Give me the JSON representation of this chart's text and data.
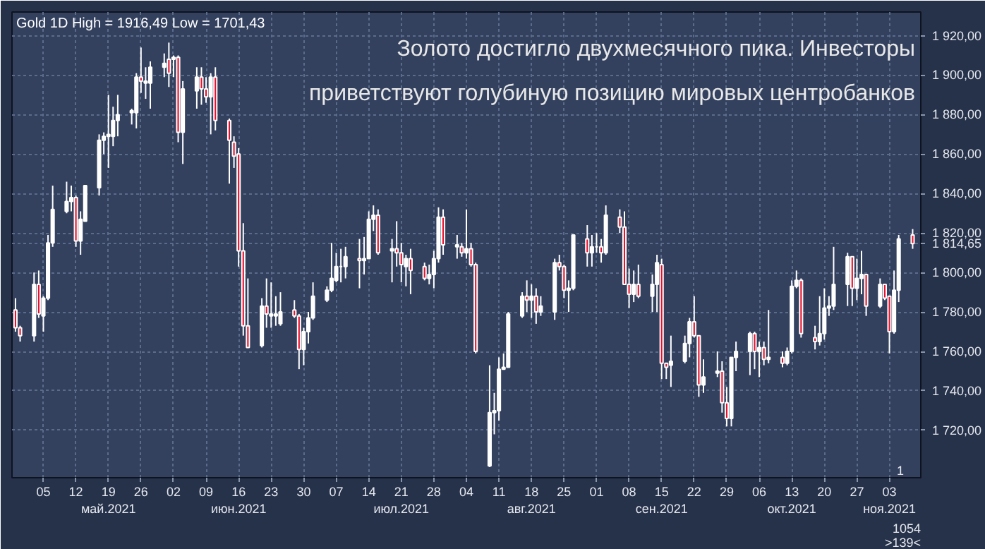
{
  "chart_data": {
    "type": "candlestick",
    "title": "Золото достигло двухмесячного пика. Инвесторы\nприветствуют голубиную позицию мировых центробанков",
    "subtitle": "Gold 1D High = 1916,49 Low = 1701,43",
    "x": [
      "2021-04-29",
      "2021-04-30",
      "2021-05-03",
      "2021-05-04",
      "2021-05-05",
      "2021-05-06",
      "2021-05-07",
      "2021-05-10",
      "2021-05-11",
      "2021-05-12",
      "2021-05-13",
      "2021-05-14",
      "2021-05-17",
      "2021-05-18",
      "2021-05-19",
      "2021-05-20",
      "2021-05-21",
      "2021-05-24",
      "2021-05-25",
      "2021-05-26",
      "2021-05-27",
      "2021-05-28",
      "2021-05-31",
      "2021-06-01",
      "2021-06-02",
      "2021-06-03",
      "2021-06-04",
      "2021-06-07",
      "2021-06-08",
      "2021-06-09",
      "2021-06-10",
      "2021-06-11",
      "2021-06-14",
      "2021-06-15",
      "2021-06-16",
      "2021-06-17",
      "2021-06-18",
      "2021-06-21",
      "2021-06-22",
      "2021-06-23",
      "2021-06-24",
      "2021-06-25",
      "2021-06-28",
      "2021-06-29",
      "2021-06-30",
      "2021-07-01",
      "2021-07-02",
      "2021-07-05",
      "2021-07-06",
      "2021-07-07",
      "2021-07-08",
      "2021-07-09",
      "2021-07-12",
      "2021-07-13",
      "2021-07-14",
      "2021-07-15",
      "2021-07-16",
      "2021-07-19",
      "2021-07-20",
      "2021-07-21",
      "2021-07-22",
      "2021-07-23",
      "2021-07-26",
      "2021-07-27",
      "2021-07-28",
      "2021-07-29",
      "2021-07-30",
      "2021-08-02",
      "2021-08-03",
      "2021-08-04",
      "2021-08-05",
      "2021-08-06",
      "2021-08-09",
      "2021-08-10",
      "2021-08-11",
      "2021-08-12",
      "2021-08-13",
      "2021-08-16",
      "2021-08-17",
      "2021-08-18",
      "2021-08-19",
      "2021-08-20",
      "2021-08-23",
      "2021-08-24",
      "2021-08-25",
      "2021-08-26",
      "2021-08-27",
      "2021-08-30",
      "2021-08-31",
      "2021-09-01",
      "2021-09-02",
      "2021-09-03",
      "2021-09-06",
      "2021-09-07",
      "2021-09-08",
      "2021-09-09",
      "2021-09-10",
      "2021-09-13",
      "2021-09-14",
      "2021-09-15",
      "2021-09-16",
      "2021-09-17",
      "2021-09-20",
      "2021-09-21",
      "2021-09-22",
      "2021-09-23",
      "2021-09-24",
      "2021-09-27",
      "2021-09-28",
      "2021-09-29",
      "2021-09-30",
      "2021-10-01",
      "2021-10-04",
      "2021-10-05",
      "2021-10-06",
      "2021-10-07",
      "2021-10-08",
      "2021-10-11",
      "2021-10-12",
      "2021-10-13",
      "2021-10-14",
      "2021-10-15",
      "2021-10-18",
      "2021-10-19",
      "2021-10-20",
      "2021-10-21",
      "2021-10-22",
      "2021-10-25",
      "2021-10-26",
      "2021-10-27",
      "2021-10-28",
      "2021-10-29",
      "2021-11-01",
      "2021-11-02",
      "2021-11-03",
      "2021-11-04",
      "2021-11-05",
      "2021-11-08"
    ],
    "ohlc": [
      [
        1781,
        1787,
        1770,
        1772
      ],
      [
        1772,
        1773,
        1765,
        1768
      ],
      [
        1768,
        1800,
        1765,
        1794
      ],
      [
        1794,
        1801,
        1777,
        1779
      ],
      [
        1778,
        1788,
        1770,
        1787
      ],
      [
        1787,
        1819,
        1786,
        1815
      ],
      [
        1815,
        1844,
        1813,
        1832
      ],
      [
        1831,
        1846,
        1830,
        1836
      ],
      [
        1836,
        1844,
        1831,
        1838
      ],
      [
        1838,
        1839,
        1813,
        1816
      ],
      [
        1816,
        1831,
        1809,
        1827
      ],
      [
        1826,
        1844,
        1826,
        1844
      ],
      [
        1843,
        1870,
        1839,
        1867
      ],
      [
        1867,
        1871,
        1860,
        1869
      ],
      [
        1869,
        1890,
        1853,
        1870
      ],
      [
        1869,
        1884,
        1864,
        1877
      ],
      [
        1877,
        1890,
        1869,
        1880
      ],
      [
        1881,
        1883,
        1875,
        1882
      ],
      [
        1881,
        1901,
        1873,
        1899
      ],
      [
        1899,
        1914,
        1891,
        1897
      ],
      [
        1896,
        1904,
        1888,
        1897
      ],
      [
        1896,
        1907,
        1883,
        1904
      ],
      [
        1904,
        1911,
        1899,
        1906
      ],
      [
        1908,
        1916.49,
        1894,
        1901
      ],
      [
        1908,
        1910,
        1899,
        1909
      ],
      [
        1909,
        1910,
        1866,
        1871
      ],
      [
        1871,
        1897,
        1855,
        1893
      ],
      [
        1892,
        1904,
        1883,
        1899
      ],
      [
        1899,
        1904,
        1885,
        1893
      ],
      [
        1893,
        1899,
        1886,
        1889
      ],
      [
        1889,
        1901,
        1870,
        1899
      ],
      [
        1899,
        1904,
        1872,
        1877
      ],
      [
        1877,
        1878,
        1845,
        1867
      ],
      [
        1866,
        1869,
        1853,
        1859
      ],
      [
        1860,
        1863,
        1803,
        1811
      ],
      [
        1811,
        1825,
        1768,
        1773
      ],
      [
        1773,
        1797,
        1762,
        1762
      ],
      [
        1763,
        1787,
        1762,
        1783
      ],
      [
        1783,
        1797,
        1772,
        1779
      ],
      [
        1778,
        1795,
        1772,
        1779
      ],
      [
        1778,
        1788,
        1773,
        1779
      ],
      [
        1774,
        1790,
        1773,
        1780
      ],
      [
        1781,
        1786,
        1777,
        1778
      ],
      [
        1778,
        1779,
        1751,
        1761
      ],
      [
        1761,
        1772,
        1753,
        1770
      ],
      [
        1770,
        1780,
        1764,
        1777
      ],
      [
        1777,
        1795,
        1776,
        1788
      ],
      [
        1786,
        1793,
        1785,
        1791
      ],
      [
        1791,
        1815,
        1790,
        1797
      ],
      [
        1796,
        1810,
        1795,
        1803
      ],
      [
        1803,
        1812,
        1795,
        1803
      ],
      [
        1803,
        1813,
        1797,
        1808
      ],
      [
        1807,
        1817,
        1792,
        1806
      ],
      [
        1806,
        1818,
        1799,
        1807
      ],
      [
        1807,
        1831,
        1807,
        1827
      ],
      [
        1827,
        1834,
        1821,
        1829
      ],
      [
        1829,
        1832,
        1809,
        1810
      ],
      [
        1811,
        1817,
        1795,
        1812
      ],
      [
        1812,
        1826,
        1803,
        1810
      ],
      [
        1810,
        1815,
        1795,
        1804
      ],
      [
        1803,
        1809,
        1793,
        1807
      ],
      [
        1807,
        1812,
        1789,
        1801
      ],
      [
        1803,
        1805,
        1796,
        1797
      ],
      [
        1797,
        1804,
        1794,
        1799
      ],
      [
        1799,
        1811,
        1792,
        1807
      ],
      [
        1807,
        1833,
        1805,
        1828
      ],
      [
        1828,
        1832,
        1809,
        1814
      ],
      [
        1813,
        1819,
        1807,
        1814
      ],
      [
        1813,
        1815,
        1808,
        1810
      ],
      [
        1810,
        1832,
        1807,
        1812
      ],
      [
        1812,
        1815,
        1803,
        1804
      ],
      [
        1804,
        1805,
        1759,
        1760
      ],
      [
        1702,
        1753,
        1701.43,
        1729
      ],
      [
        1729,
        1739,
        1718,
        1730
      ],
      [
        1730,
        1757,
        1725,
        1751
      ],
      [
        1751,
        1759,
        1751,
        1752
      ],
      [
        1752,
        1780,
        1752,
        1779
      ],
      [
        1778,
        1790,
        1777,
        1788
      ],
      [
        1788,
        1796,
        1780,
        1786
      ],
      [
        1786,
        1794,
        1777,
        1788
      ],
      [
        1788,
        1792,
        1774,
        1780
      ],
      [
        1780,
        1788,
        1778,
        1783
      ],
      [
        1780,
        1807,
        1776,
        1805
      ],
      [
        1805,
        1809,
        1801,
        1803
      ],
      [
        1803,
        1804,
        1787,
        1791
      ],
      [
        1791,
        1796,
        1780,
        1792
      ],
      [
        1792,
        1819,
        1791,
        1819
      ],
      [
        1817,
        1824,
        1803,
        1810
      ],
      [
        1810,
        1819,
        1803,
        1813
      ],
      [
        1813,
        1820,
        1810,
        1813
      ],
      [
        1813,
        1817,
        1805,
        1810
      ],
      [
        1810,
        1834,
        1809,
        1829
      ],
      [
        1828,
        1832,
        1820,
        1823
      ],
      [
        1823,
        1831,
        1794,
        1794
      ],
      [
        1794,
        1802,
        1782,
        1789
      ],
      [
        1789,
        1801,
        1785,
        1794
      ],
      [
        1794,
        1804,
        1787,
        1788
      ],
      [
        1788,
        1799,
        1780,
        1794
      ],
      [
        1794,
        1809,
        1780,
        1805
      ],
      [
        1804,
        1807,
        1746,
        1754
      ],
      [
        1754,
        1754,
        1746,
        1752
      ],
      [
        1753,
        1768,
        1742,
        1755
      ],
      [
        1755,
        1768,
        1754,
        1764
      ],
      [
        1764,
        1777,
        1757,
        1775
      ],
      [
        1775,
        1788,
        1767,
        1768
      ],
      [
        1768,
        1768,
        1737,
        1743
      ],
      [
        1743,
        1756,
        1739,
        1747
      ],
      [
        1749,
        1760,
        1747,
        1750
      ],
      [
        1750,
        1755,
        1729,
        1734
      ],
      [
        1734,
        1742,
        1722,
        1726
      ],
      [
        1726,
        1757,
        1722,
        1757
      ],
      [
        1757,
        1765,
        1750,
        1760
      ],
      [
        1760,
        1770,
        1748,
        1769
      ],
      [
        1769,
        1770,
        1751,
        1760
      ],
      [
        1760,
        1765,
        1747,
        1762
      ],
      [
        1762,
        1765,
        1753,
        1756
      ],
      [
        1756,
        1781,
        1754,
        1757
      ],
      [
        1757,
        1760,
        1752,
        1754
      ],
      [
        1754,
        1762,
        1753,
        1760
      ],
      [
        1760,
        1796,
        1759,
        1793
      ],
      [
        1793,
        1801,
        1792,
        1796
      ],
      [
        1796,
        1797,
        1767,
        1769
      ],
      [
        1767,
        1773,
        1761,
        1765
      ],
      [
        1765,
        1788,
        1763,
        1769
      ],
      [
        1769,
        1792,
        1766,
        1782
      ],
      [
        1782,
        1788,
        1778,
        1783
      ],
      [
        1783,
        1813,
        1781,
        1794
      ],
      [
        1794,
        1810,
        1783,
        1808
      ],
      [
        1808,
        1808,
        1783,
        1792
      ],
      [
        1792,
        1807,
        1786,
        1797
      ],
      [
        1797,
        1811,
        1789,
        1799
      ],
      [
        1799,
        1799,
        1778,
        1783
      ],
      [
        1783,
        1797,
        1782,
        1794
      ],
      [
        1794,
        1794,
        1786,
        1787
      ],
      [
        1788,
        1788,
        1759,
        1770
      ],
      [
        1770,
        1801,
        1769,
        1791
      ],
      [
        1791,
        1819,
        1785,
        1817
      ],
      [
        1819,
        1822,
        1812,
        1814.65
      ]
    ],
    "colors": [
      "#e8102c",
      "#e8102c",
      "#ffffff",
      "#e8102c",
      "#ffffff",
      "#ffffff",
      "#ffffff",
      "#ffffff",
      "#ffffff",
      "#e8102c",
      "#ffffff",
      "#ffffff",
      "#ffffff",
      "#ffffff",
      "#ffffff",
      "#ffffff",
      "#ffffff",
      "#ffffff",
      "#ffffff",
      "#e8102c",
      "#ffffff",
      "#ffffff",
      "#ffffff",
      "#e8102c",
      "#ffffff",
      "#e8102c",
      "#ffffff",
      "#ffffff",
      "#e8102c",
      "#e8102c",
      "#ffffff",
      "#e8102c",
      "#e8102c",
      "#e8102c",
      "#e8102c",
      "#e8102c",
      "#e8102c",
      "#ffffff",
      "#e8102c",
      "#ffffff",
      "#ffffff",
      "#ffffff",
      "#e8102c",
      "#e8102c",
      "#ffffff",
      "#ffffff",
      "#ffffff",
      "#ffffff",
      "#ffffff",
      "#ffffff",
      "#ffffff",
      "#ffffff",
      "#e8102c",
      "#ffffff",
      "#ffffff",
      "#ffffff",
      "#e8102c",
      "#ffffff",
      "#e8102c",
      "#e8102c",
      "#ffffff",
      "#e8102c",
      "#e8102c",
      "#ffffff",
      "#ffffff",
      "#ffffff",
      "#e8102c",
      "#ffffff",
      "#e8102c",
      "#ffffff",
      "#e8102c",
      "#e8102c",
      "#ffffff",
      "#ffffff",
      "#ffffff",
      "#ffffff",
      "#ffffff",
      "#ffffff",
      "#e8102c",
      "#ffffff",
      "#e8102c",
      "#ffffff",
      "#ffffff",
      "#e8102c",
      "#e8102c",
      "#ffffff",
      "#ffffff",
      "#e8102c",
      "#ffffff",
      "#ffffff",
      "#e8102c",
      "#ffffff",
      "#e8102c",
      "#e8102c",
      "#e8102c",
      "#ffffff",
      "#e8102c",
      "#ffffff",
      "#ffffff",
      "#e8102c",
      "#e8102c",
      "#ffffff",
      "#ffffff",
      "#ffffff",
      "#e8102c",
      "#e8102c",
      "#ffffff",
      "#ffffff",
      "#e8102c",
      "#e8102c",
      "#ffffff",
      "#ffffff",
      "#ffffff",
      "#e8102c",
      "#ffffff",
      "#e8102c",
      "#ffffff",
      "#e8102c",
      "#ffffff",
      "#ffffff",
      "#ffffff",
      "#e8102c",
      "#e8102c",
      "#ffffff",
      "#ffffff",
      "#ffffff",
      "#ffffff",
      "#ffffff",
      "#e8102c",
      "#ffffff",
      "#ffffff",
      "#e8102c",
      "#ffffff",
      "#e8102c",
      "#e8102c",
      "#ffffff",
      "#ffffff",
      "#e8102c"
    ],
    "xlim": [
      "2021-04-28T06:00",
      "2021-11-09T18:00"
    ],
    "xticks": [
      {
        "value": "2021-05-05",
        "label": "05"
      },
      {
        "value": "2021-05-12",
        "label": "12"
      },
      {
        "value": "2021-05-19",
        "label": "19\nмай.2021"
      },
      {
        "value": "2021-05-26",
        "label": "26"
      },
      {
        "value": "2021-06-02",
        "label": "02"
      },
      {
        "value": "2021-06-09",
        "label": "09"
      },
      {
        "value": "2021-06-16",
        "label": "16\nиюн.2021"
      },
      {
        "value": "2021-06-23",
        "label": "23"
      },
      {
        "value": "2021-06-30",
        "label": "30"
      },
      {
        "value": "2021-07-07",
        "label": "07"
      },
      {
        "value": "2021-07-14",
        "label": "14"
      },
      {
        "value": "2021-07-21",
        "label": "21\nиюл.2021"
      },
      {
        "value": "2021-07-28",
        "label": "28"
      },
      {
        "value": "2021-08-04",
        "label": "04"
      },
      {
        "value": "2021-08-11",
        "label": "11"
      },
      {
        "value": "2021-08-18",
        "label": "18\nавг.2021"
      },
      {
        "value": "2021-08-25",
        "label": "25"
      },
      {
        "value": "2021-09-01",
        "label": "01"
      },
      {
        "value": "2021-09-08",
        "label": "08"
      },
      {
        "value": "2021-09-15",
        "label": "15\nсен.2021"
      },
      {
        "value": "2021-09-22",
        "label": "22"
      },
      {
        "value": "2021-09-29",
        "label": "29"
      },
      {
        "value": "2021-10-06",
        "label": "06"
      },
      {
        "value": "2021-10-13",
        "label": "13\nокт.2021"
      },
      {
        "value": "2021-10-20",
        "label": "20"
      },
      {
        "value": "2021-10-27",
        "label": "27"
      },
      {
        "value": "2021-11-03",
        "label": "03\nноя.2021"
      }
    ],
    "ylim": [
      1696,
      1932
    ],
    "yticks": [
      {
        "value": 1720,
        "label": "1 720,00"
      },
      {
        "value": 1740,
        "label": "1 740,00"
      },
      {
        "value": 1760,
        "label": "1 760,00"
      },
      {
        "value": 1780,
        "label": "1 780,00"
      },
      {
        "value": 1800,
        "label": "1 800,00"
      },
      {
        "value": 1814.65,
        "label": "1 814,65"
      },
      {
        "value": 1820,
        "label": "1 820,00"
      },
      {
        "value": 1840,
        "label": "1 840,00"
      },
      {
        "value": 1860,
        "label": "1 860,00"
      },
      {
        "value": 1880,
        "label": "1 880,00"
      },
      {
        "value": 1900,
        "label": "1 900,00"
      },
      {
        "value": 1920,
        "label": "1 920,00"
      }
    ],
    "grid": true,
    "annotations": [
      "1",
      "1054",
      ">139<"
    ]
  }
}
